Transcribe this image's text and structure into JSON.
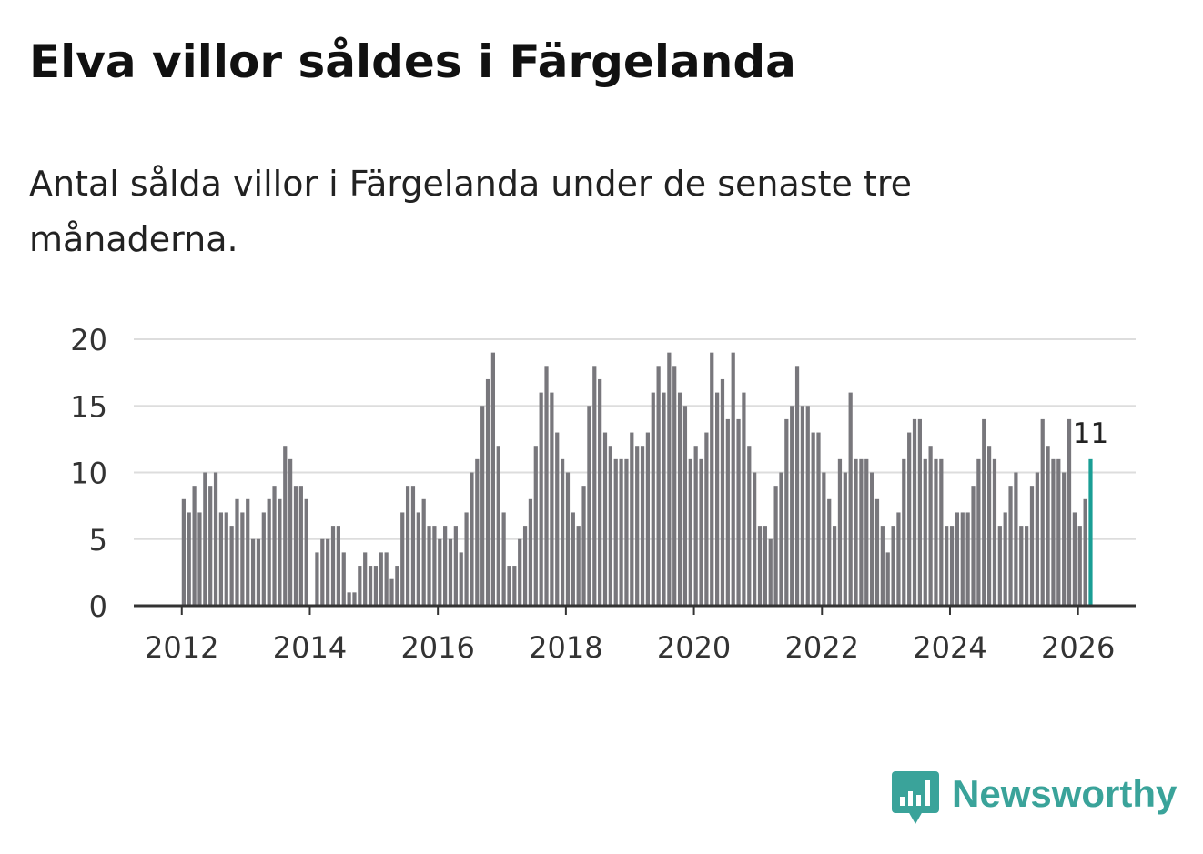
{
  "title": "Elva villor såldes i Färgelanda",
  "subtitle": "Antal sålda villor i Färgelanda under de senaste tre månaderna.",
  "logo": {
    "name": "Newsworthy",
    "icon": "bar-chart-speech-bubble-icon",
    "color": "#3aa39a"
  },
  "colors": {
    "bar": "#78777c",
    "highlight": "#1a9e95",
    "grid": "#dddddd",
    "axis": "#333333",
    "tick_text": "#333333"
  },
  "chart_data": {
    "type": "bar",
    "title": "Elva villor såldes i Färgelanda",
    "xlabel": "",
    "ylabel": "",
    "ylim": [
      0,
      20
    ],
    "yticks": [
      0,
      5,
      10,
      15,
      20
    ],
    "y_tick_labels": [
      "0",
      "5",
      "10",
      "15",
      "20"
    ],
    "x_ticks": [
      2012,
      2014,
      2016,
      2018,
      2020,
      2022,
      2024,
      2026
    ],
    "x_tick_labels": [
      "2012",
      "2014",
      "2016",
      "2018",
      "2020",
      "2022",
      "2024",
      "2026"
    ],
    "x_range": [
      2011.25,
      2026.9
    ],
    "x_start": 2012.0,
    "x_step": 0.08333,
    "grid": true,
    "highlight_index": 170,
    "highlight_label": "11",
    "values": [
      8,
      7,
      9,
      7,
      10,
      9,
      10,
      7,
      7,
      6,
      8,
      7,
      8,
      5,
      5,
      7,
      8,
      9,
      8,
      12,
      11,
      9,
      9,
      8,
      0,
      4,
      5,
      5,
      6,
      6,
      4,
      1,
      1,
      3,
      4,
      3,
      3,
      4,
      4,
      2,
      3,
      7,
      9,
      9,
      7,
      8,
      6,
      6,
      5,
      6,
      5,
      6,
      4,
      7,
      10,
      11,
      15,
      17,
      19,
      12,
      7,
      3,
      3,
      5,
      6,
      8,
      12,
      16,
      18,
      16,
      13,
      11,
      10,
      7,
      6,
      9,
      15,
      18,
      17,
      13,
      12,
      11,
      11,
      11,
      13,
      12,
      12,
      13,
      16,
      18,
      16,
      19,
      18,
      16,
      15,
      11,
      12,
      11,
      13,
      19,
      16,
      17,
      14,
      19,
      14,
      16,
      12,
      10,
      6,
      6,
      5,
      9,
      10,
      14,
      15,
      18,
      15,
      15,
      13,
      13,
      10,
      8,
      6,
      11,
      10,
      16,
      11,
      11,
      11,
      10,
      8,
      6,
      4,
      6,
      7,
      11,
      13,
      14,
      14,
      11,
      12,
      11,
      11,
      6,
      6,
      7,
      7,
      7,
      9,
      11,
      14,
      12,
      11,
      6,
      7,
      9,
      10,
      6,
      6,
      9,
      10,
      14,
      12,
      11,
      11,
      10,
      14,
      7,
      6,
      8,
      11
    ]
  }
}
